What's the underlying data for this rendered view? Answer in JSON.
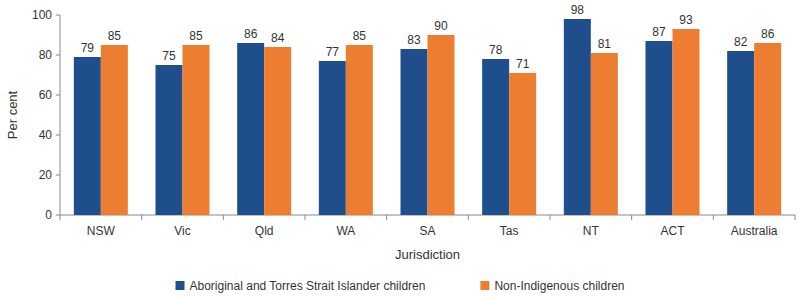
{
  "chart_data": {
    "type": "bar",
    "x_label": "Jurisdiction",
    "y_label": "Per cent",
    "categories": [
      "NSW",
      "Vic",
      "Qld",
      "WA",
      "SA",
      "Tas",
      "NT",
      "ACT",
      "Australia"
    ],
    "series": [
      {
        "name": "Aboriginal and Torres Strait Islander children",
        "color": "#1f4e8c",
        "values": [
          79,
          75,
          86,
          77,
          83,
          78,
          98,
          87,
          82
        ]
      },
      {
        "name": "Non-Indigenous children",
        "color": "#ed7d31",
        "values": [
          85,
          85,
          84,
          85,
          90,
          71,
          81,
          93,
          86
        ]
      }
    ],
    "ylim": [
      0,
      100
    ],
    "yticks": [
      0,
      20,
      40,
      60,
      80,
      100
    ],
    "grid": false,
    "legend": "bottom",
    "data_labels": true
  }
}
